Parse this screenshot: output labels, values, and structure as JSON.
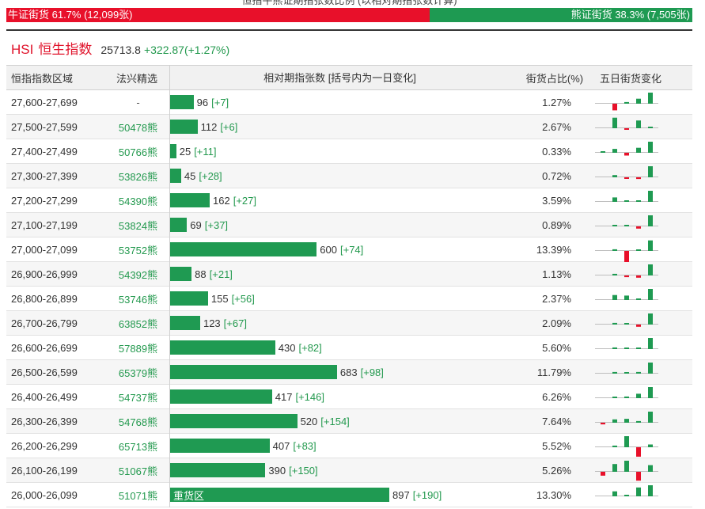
{
  "title": "恒指牛熊证期指张数比例 (以相对期指张数计算)",
  "colors": {
    "bull": "#e8102a",
    "bear": "#1e9a52",
    "bar": "#1f9a52",
    "up": "#1f9a52",
    "down": "#e8102a",
    "index_text": "#e0142c",
    "positive_text": "#23994e",
    "baseline": "#bdbdbd"
  },
  "ratio": {
    "bull_label": "牛证街货 61.7% (12,099张)",
    "bear_label": "熊证街货 38.3% (7,505张)",
    "bull_fraction": 0.617
  },
  "index": {
    "code": "HSI",
    "name": "恒生指数",
    "value": "25713.8",
    "change": "+322.87(+1.27%)"
  },
  "header": {
    "range": "恒指指数区域",
    "pick": "法兴精选",
    "count": "相对期指张数 [括号内为一日变化]",
    "share": "街货占比(%)",
    "five_day": "五日街货变化"
  },
  "rows": [
    {
      "range": "27,600-27,699",
      "pick": "-",
      "count": 96,
      "day_change": "[+7]",
      "share": "1.27%",
      "five_day": [
        0,
        -0.6,
        0.15,
        0.45,
        1
      ]
    },
    {
      "range": "27,500-27,599",
      "pick": "50478熊",
      "count": 112,
      "day_change": "[+6]",
      "share": "2.67%",
      "five_day": [
        0,
        0.95,
        -0.12,
        0.7,
        0.1
      ]
    },
    {
      "range": "27,400-27,499",
      "pick": "50766熊",
      "count": 25,
      "day_change": "[+11]",
      "share": "0.33%",
      "five_day": [
        0.05,
        0.35,
        -0.25,
        0.45,
        1
      ]
    },
    {
      "range": "27,300-27,399",
      "pick": "53826熊",
      "count": 45,
      "day_change": "[+28]",
      "share": "0.72%",
      "five_day": [
        0,
        0.2,
        -0.1,
        -0.15,
        1
      ]
    },
    {
      "range": "27,200-27,299",
      "pick": "54390熊",
      "count": 162,
      "day_change": "[+27]",
      "share": "3.59%",
      "five_day": [
        0,
        0.4,
        0.05,
        0.05,
        1
      ]
    },
    {
      "range": "27,100-27,199",
      "pick": "53824熊",
      "count": 69,
      "day_change": "[+37]",
      "share": "0.89%",
      "five_day": [
        0,
        0.1,
        0.1,
        -0.2,
        1
      ]
    },
    {
      "range": "27,000-27,099",
      "pick": "53752熊",
      "count": 600,
      "day_change": "[+74]",
      "share": "13.39%",
      "five_day": [
        0,
        0.15,
        -1,
        0.1,
        0.95
      ]
    },
    {
      "range": "26,900-26,999",
      "pick": "54392熊",
      "count": 88,
      "day_change": "[+21]",
      "share": "1.13%",
      "five_day": [
        0,
        0.15,
        -0.15,
        -0.2,
        1
      ]
    },
    {
      "range": "26,800-26,899",
      "pick": "53746熊",
      "count": 155,
      "day_change": "[+56]",
      "share": "2.37%",
      "five_day": [
        0,
        0.45,
        0.4,
        0.1,
        1
      ]
    },
    {
      "range": "26,700-26,799",
      "pick": "63852熊",
      "count": 123,
      "day_change": "[+67]",
      "share": "2.09%",
      "five_day": [
        0,
        0.15,
        0.1,
        -0.2,
        1
      ]
    },
    {
      "range": "26,600-26,699",
      "pick": "57889熊",
      "count": 430,
      "day_change": "[+82]",
      "share": "5.60%",
      "five_day": [
        0,
        0.15,
        0.12,
        0.1,
        1
      ]
    },
    {
      "range": "26,500-26,599",
      "pick": "65379熊",
      "count": 683,
      "day_change": "[+98]",
      "share": "11.79%",
      "five_day": [
        0,
        0.15,
        0.1,
        0.15,
        1
      ]
    },
    {
      "range": "26,400-26,499",
      "pick": "54737熊",
      "count": 417,
      "day_change": "[+146]",
      "share": "6.26%",
      "five_day": [
        0,
        0.12,
        0.15,
        0.4,
        1
      ]
    },
    {
      "range": "26,300-26,399",
      "pick": "54768熊",
      "count": 520,
      "day_change": "[+154]",
      "share": "7.64%",
      "five_day": [
        -0.15,
        0.3,
        0.35,
        0.15,
        1
      ]
    },
    {
      "range": "26,200-26,299",
      "pick": "65713熊",
      "count": 407,
      "day_change": "[+83]",
      "share": "5.52%",
      "five_day": [
        0,
        0.15,
        1,
        -0.85,
        0.25
      ]
    },
    {
      "range": "26,100-26,199",
      "pick": "51067熊",
      "count": 390,
      "day_change": "[+150]",
      "share": "5.26%",
      "five_day": [
        -0.35,
        0.7,
        1,
        -0.8,
        0.6
      ]
    },
    {
      "range": "26,000-26,099",
      "pick": "51071熊",
      "count": 897,
      "day_change": "[+190]",
      "share": "13.30%",
      "tag": "重货区",
      "five_day": [
        0,
        0.45,
        0.1,
        0.8,
        1
      ]
    }
  ]
}
